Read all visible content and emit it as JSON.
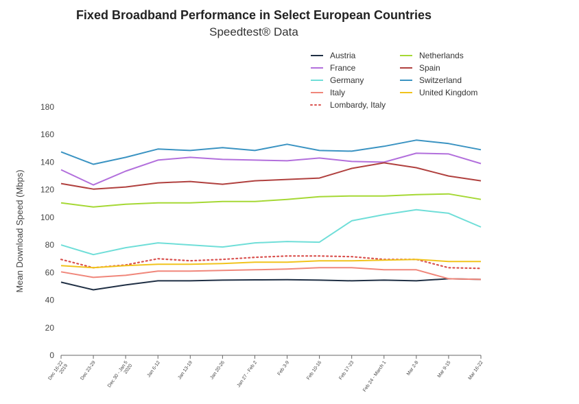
{
  "chart_data": {
    "type": "line",
    "title": "Fixed Broadband Performance in Select European Countries",
    "subtitle": "Speedtest® Data",
    "xlabel": "",
    "ylabel": "Mean Download Speed (Mbps)",
    "ylim": [
      0,
      180
    ],
    "yticks": [
      0,
      20,
      40,
      60,
      80,
      100,
      120,
      140,
      160,
      180
    ],
    "grid": false,
    "legend_position": "top-right",
    "categories": [
      [
        "Dec 16-22",
        "2019"
      ],
      [
        "Dec 23-29"
      ],
      [
        "Dec 30 - Jan 5",
        "2020"
      ],
      [
        "Jan 6-12"
      ],
      [
        "Jan 13-19"
      ],
      [
        "Jan 20-26"
      ],
      [
        "Jan 27 - Feb 2"
      ],
      [
        "Feb 3-9"
      ],
      [
        "Feb 10-16"
      ],
      [
        "Feb 17-23"
      ],
      [
        "Feb 24 - March 1"
      ],
      [
        "Mar 2-8"
      ],
      [
        "Mar 9-15"
      ],
      [
        "Mar 16-22"
      ]
    ],
    "series": [
      {
        "name": "Austria",
        "color": "#1f2f44",
        "dash": false,
        "values": [
          53,
          47.5,
          51,
          54,
          54,
          54.5,
          54.7,
          54.8,
          54.5,
          54,
          54.5,
          54,
          55.5,
          55
        ]
      },
      {
        "name": "France",
        "color": "#b26fdc",
        "dash": false,
        "values": [
          134.5,
          123.5,
          133.5,
          141.5,
          143.5,
          142,
          141.5,
          141,
          143,
          140.5,
          140,
          146.5,
          146,
          139
        ]
      },
      {
        "name": "Germany",
        "color": "#6fded8",
        "dash": false,
        "values": [
          80,
          73,
          78,
          81.5,
          80,
          78.5,
          81.5,
          82.5,
          82,
          97.5,
          102,
          105.5,
          103,
          93
        ]
      },
      {
        "name": "Italy",
        "color": "#f0867a",
        "dash": false,
        "values": [
          60.5,
          56.5,
          58,
          61,
          61,
          61.5,
          62,
          62.5,
          63.5,
          63.5,
          62,
          62,
          55.5,
          55
        ]
      },
      {
        "name": "Lombardy, Italy",
        "color": "#d9504d",
        "dash": true,
        "values": [
          69.5,
          63.5,
          65.5,
          70,
          68.5,
          69.5,
          71,
          72,
          72,
          71.5,
          69.5,
          69.5,
          63.5,
          63
        ]
      },
      {
        "name": "Netherlands",
        "color": "#a5d834",
        "dash": false,
        "values": [
          110.5,
          107.5,
          109.5,
          110.5,
          110.5,
          111.5,
          111.5,
          113,
          115,
          115.5,
          115.5,
          116.5,
          117,
          113
        ]
      },
      {
        "name": "Spain",
        "color": "#b0403e",
        "dash": false,
        "values": [
          124.5,
          120.5,
          122,
          125,
          126,
          124,
          126.5,
          127.5,
          128.5,
          135.5,
          139.5,
          136,
          130,
          126.5
        ]
      },
      {
        "name": "Switzerland",
        "color": "#3a93c2",
        "dash": false,
        "values": [
          147.5,
          138.5,
          143.5,
          149.5,
          148.5,
          150.5,
          148.5,
          153,
          148.5,
          148,
          151.5,
          156,
          153.5,
          149
        ]
      },
      {
        "name": "United Kingdom",
        "color": "#f1c31c",
        "dash": false,
        "values": [
          65,
          63.5,
          65,
          66,
          66,
          66.5,
          67.5,
          67.5,
          68.5,
          68.5,
          69,
          69.5,
          68,
          68
        ]
      }
    ]
  }
}
